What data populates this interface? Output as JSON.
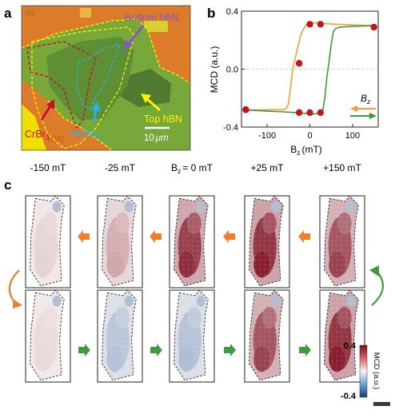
{
  "panels": {
    "a": "a",
    "b": "b",
    "c": "c"
  },
  "micrograph": {
    "labels": {
      "bottom_hbn": "Bottom hBN",
      "top_hbn": "Top hBN",
      "crbr3": "CrBr",
      "crbr3_sub": "3",
      "mose2": "MoSe",
      "mose2_sub": "2"
    },
    "scale_bar": {
      "value": "10",
      "unit": "μm"
    },
    "colors": {
      "bottom_hbn": "#8a55c8",
      "top_hbn": "#fff200",
      "crbr3": "#c8102e",
      "mose2": "#25b4e8"
    }
  },
  "chart_data": {
    "type": "line",
    "xlabel": "B",
    "xlabel_sub": "z",
    "xlabel_unit": "(mT)",
    "ylabel": "MCD (a.u.)",
    "xlim": [
      -160,
      160
    ],
    "ylim": [
      -0.4,
      0.4
    ],
    "xticks": [
      -100,
      0,
      100
    ],
    "yticks": [
      -0.4,
      0.0,
      0.4
    ],
    "ytick_labels": [
      "-0.4",
      "0.0",
      "0.4"
    ],
    "legend": {
      "label": "B",
      "label_sub": "z",
      "position": "bottom-right"
    },
    "series": [
      {
        "direction": "decreasing",
        "color": "#f39a3d",
        "x": [
          150,
          100,
          60,
          30,
          10,
          0,
          -5,
          -10,
          -20,
          -30,
          -40,
          -45,
          -50,
          -55,
          -60,
          -70,
          -100,
          -150
        ],
        "y": [
          0.3,
          0.305,
          0.31,
          0.315,
          0.32,
          0.32,
          0.315,
          0.3,
          0.25,
          0.13,
          0.0,
          -0.12,
          -0.24,
          -0.27,
          -0.28,
          -0.28,
          -0.28,
          -0.285
        ]
      },
      {
        "direction": "increasing",
        "color": "#3e9a3a",
        "x": [
          -150,
          -100,
          -60,
          -30,
          -10,
          0,
          10,
          20,
          30,
          35,
          40,
          45,
          50,
          55,
          60,
          70,
          100,
          150
        ],
        "y": [
          -0.28,
          -0.29,
          -0.295,
          -0.3,
          -0.305,
          -0.31,
          -0.31,
          -0.305,
          -0.29,
          -0.2,
          -0.05,
          0.05,
          0.17,
          0.26,
          0.28,
          0.29,
          0.295,
          0.3
        ]
      }
    ],
    "markers": {
      "color": "#c0161c",
      "points": [
        [
          -150,
          -0.28
        ],
        [
          -25,
          -0.3
        ],
        [
          0,
          -0.3
        ],
        [
          25,
          -0.3
        ],
        [
          150,
          0.29
        ],
        [
          -150,
          -0.28
        ],
        [
          -25,
          0.04
        ],
        [
          0,
          0.31
        ],
        [
          25,
          0.31
        ],
        [
          150,
          0.29
        ]
      ]
    }
  },
  "maps": {
    "columns": [
      "-150 mT",
      "-25 mT",
      "= 0 mT",
      "+25 mT",
      "+150 mT"
    ],
    "b0_prefix": "B",
    "b0_sub": "z",
    "rows": [
      {
        "name": "top",
        "levels": [
          0.08,
          0.22,
          0.72,
          0.78,
          0.62
        ]
      },
      {
        "name": "bottom",
        "levels": [
          0.06,
          -0.2,
          -0.22,
          0.62,
          0.78
        ]
      }
    ],
    "colorbar": {
      "max_label": "0.4",
      "min_label": "-0.4",
      "title": "MCD (a.u.)",
      "max": 0.4,
      "min": -0.4
    },
    "arrow_colors": {
      "orange": "#f07c2c",
      "green": "#3e9a3a"
    }
  }
}
